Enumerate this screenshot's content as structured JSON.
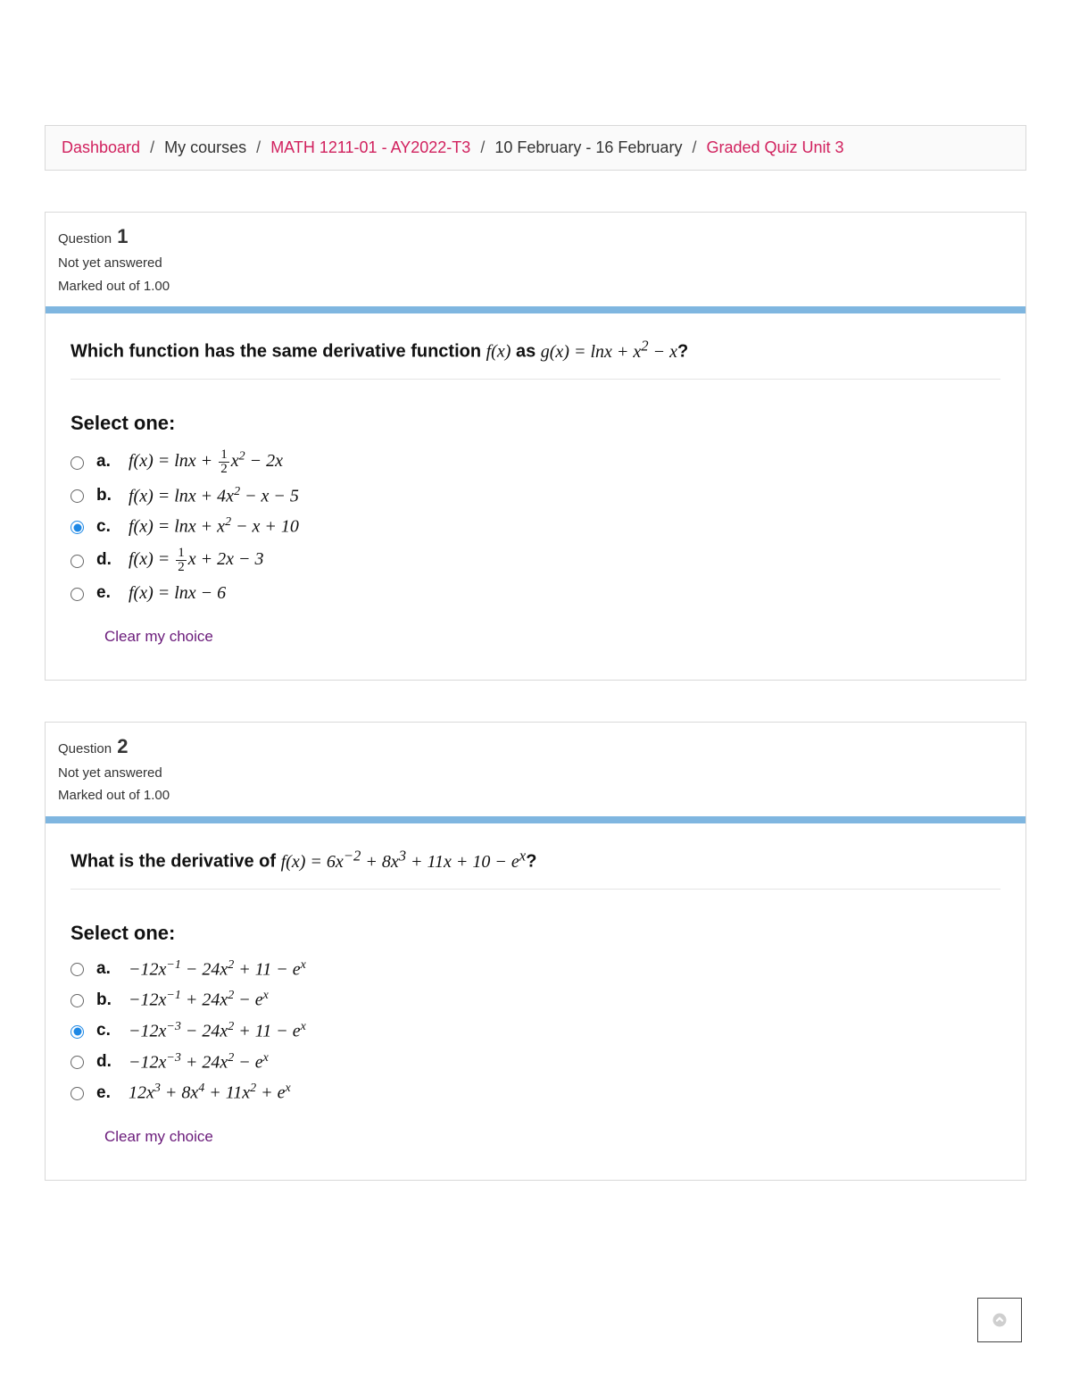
{
  "breadcrumb": {
    "dashboard": "Dashboard",
    "mycourses": "My courses",
    "course": "MATH 1211-01 - AY2022-T3",
    "week": "10 February - 16 February",
    "quiz": "Graded Quiz Unit 3"
  },
  "labels": {
    "question_prefix": "Question",
    "not_answered": "Not yet answered",
    "marked_out": "Marked out of 1.00",
    "select_one": "Select one:",
    "clear_choice": "Clear my choice"
  },
  "questions": [
    {
      "number": "1",
      "prompt_html": "Which function has the same derivative function <span class='math'>f(x)</span> as <span class='math'>g(x) = lnx + x<sup>2</sup> − x</span>?",
      "selected": "c",
      "answers": [
        {
          "letter": "a.",
          "html": "f(x) = lnx + <span class='frac'><span class='n'>1</span><span class='d'>2</span></span>x<sup>2</sup> − 2x"
        },
        {
          "letter": "b.",
          "html": "f(x) = lnx + 4x<sup>2</sup> − x − 5"
        },
        {
          "letter": "c.",
          "html": "f(x) = lnx + x<sup>2</sup> − x + 10"
        },
        {
          "letter": "d.",
          "html": "f(x) = <span class='frac'><span class='n'>1</span><span class='d'>2</span></span>x + 2x − 3"
        },
        {
          "letter": "e.",
          "html": "f(x) = lnx − 6"
        }
      ]
    },
    {
      "number": "2",
      "prompt_html": "What is the derivative of <span class='math'>f(x) = 6x<sup>−2</sup> + 8x<sup>3</sup> + 11x + 10 − e<sup>x</sup></span>?",
      "selected": "c",
      "answers": [
        {
          "letter": "a.",
          "html": "−12x<sup>−1</sup> − 24x<sup>2</sup> + 11 − e<sup>x</sup>"
        },
        {
          "letter": "b.",
          "html": "−12x<sup>−1</sup> + 24x<sup>2</sup> − e<sup>x</sup>"
        },
        {
          "letter": "c.",
          "html": "−12x<sup>−3</sup> − 24x<sup>2</sup> + 11 − e<sup>x</sup>"
        },
        {
          "letter": "d.",
          "html": "−12x<sup>−3</sup> + 24x<sup>2</sup> − e<sup>x</sup>"
        },
        {
          "letter": "e.",
          "html": "12x<sup>3</sup> + 8x<sup>4</sup> + 11x<sup>2</sup> + e<sup>x</sup>"
        }
      ]
    }
  ],
  "colors": {
    "accent_link": "#d1215e",
    "blue_bar": "#7fb6e0",
    "clear_link": "#6a1a7a",
    "radio_selected": "#1e88e5",
    "border": "#d9d9d9"
  }
}
